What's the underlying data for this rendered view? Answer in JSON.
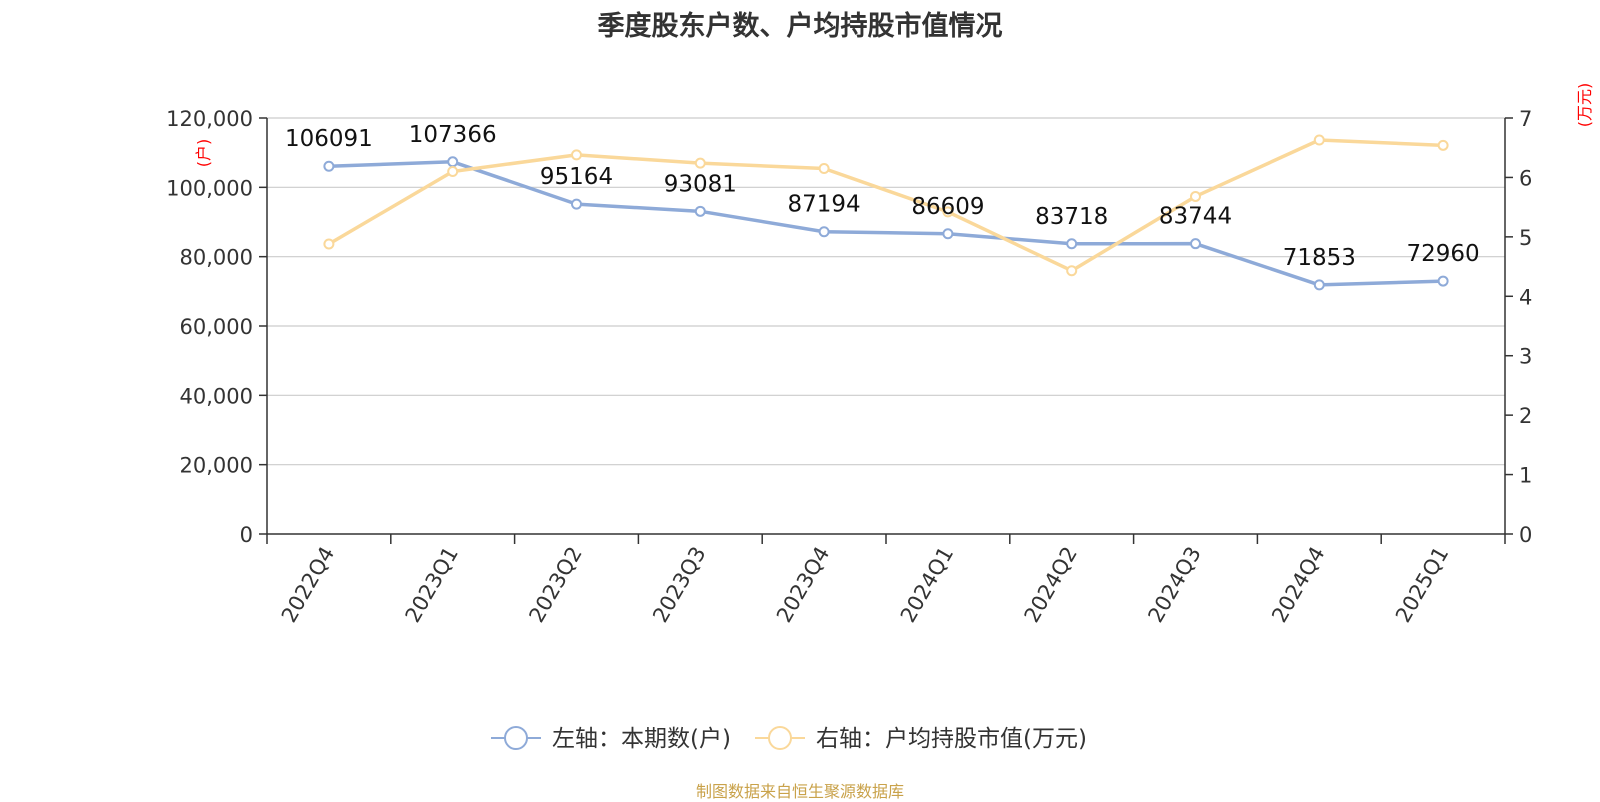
{
  "chart_data": {
    "type": "line",
    "title": "季度股东户数、户均持股市值情况",
    "categories": [
      "2022Q4",
      "2023Q1",
      "2023Q2",
      "2023Q3",
      "2023Q4",
      "2024Q1",
      "2024Q2",
      "2024Q3",
      "2024Q4",
      "2025Q1"
    ],
    "series": [
      {
        "name": "左轴：本期数(户)",
        "axis": "left",
        "color": "#8eaad8",
        "values": [
          106091,
          107366,
          95164,
          93081,
          87194,
          86609,
          83718,
          83744,
          71853,
          72960
        ],
        "data_labels": [
          "106091",
          "107366",
          "95164",
          "93081",
          "87194",
          "86609",
          "83718",
          "83744",
          "71853",
          "72960"
        ]
      },
      {
        "name": "右轴：户均持股市值(万元)",
        "axis": "right",
        "color": "#fad89a",
        "values": [
          4.88,
          6.1,
          6.38,
          6.24,
          6.15,
          5.42,
          4.43,
          5.68,
          6.63,
          6.54
        ]
      }
    ],
    "y_left": {
      "unit_label": "(户)",
      "range": [
        0,
        120000
      ],
      "ticks": [
        0,
        20000,
        40000,
        60000,
        80000,
        100000,
        120000
      ],
      "tick_labels": [
        "0",
        "20,000",
        "40,000",
        "60,000",
        "80,000",
        "100,000",
        "120,000"
      ]
    },
    "y_right": {
      "unit_label": "(万元)",
      "range": [
        0,
        7
      ],
      "ticks": [
        0,
        1,
        2,
        3,
        4,
        5,
        6,
        7
      ],
      "tick_labels": [
        "0",
        "1",
        "2",
        "3",
        "4",
        "5",
        "6",
        "7"
      ]
    },
    "grid": true,
    "legend_position": "bottom-center",
    "source": "制图数据来自恒生聚源数据库",
    "colors": {
      "grid": "#cccccc",
      "axis": "#333333",
      "unit": "#ff0000",
      "source": "#c9a24a"
    }
  }
}
